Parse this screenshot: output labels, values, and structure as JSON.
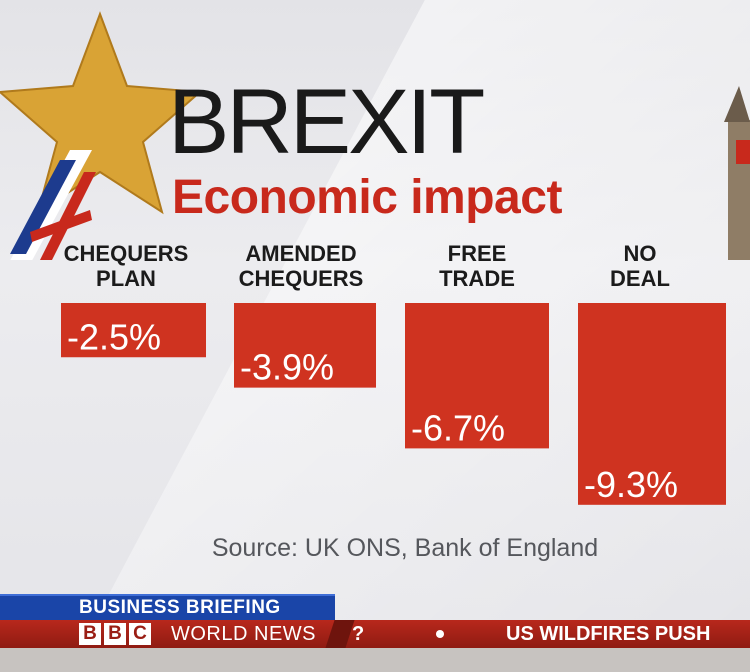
{
  "header": {
    "title": "BREXIT",
    "subtitle": "Economic impact"
  },
  "chart_data": {
    "type": "bar",
    "title": "BREXIT Economic impact",
    "categories": [
      [
        "CHEQUERS",
        "PLAN"
      ],
      [
        "AMENDED",
        "CHEQUERS"
      ],
      [
        "FREE",
        "TRADE"
      ],
      [
        "NO",
        "DEAL"
      ]
    ],
    "values": [
      -2.5,
      -3.9,
      -6.7,
      -9.3
    ],
    "value_labels": [
      "-2.5%",
      "-3.9%",
      "-6.7%",
      "-9.3%"
    ],
    "xlabel": "",
    "ylabel": "",
    "ylim": [
      -10,
      0
    ],
    "grid": false,
    "bar_color": "#cf3320"
  },
  "source": "Source: UK ONS, Bank of England",
  "ticker": {
    "section": "BUSINESS BRIEFING",
    "logo_letters": [
      "B",
      "B",
      "C"
    ],
    "channel": "WORLD NEWS",
    "channel_tail": "?",
    "headline": "US WILDFIRES PUSH"
  },
  "colors": {
    "accent_red": "#c8291c",
    "bar_red": "#cf3320",
    "strip_blue": "#1a45a8"
  }
}
